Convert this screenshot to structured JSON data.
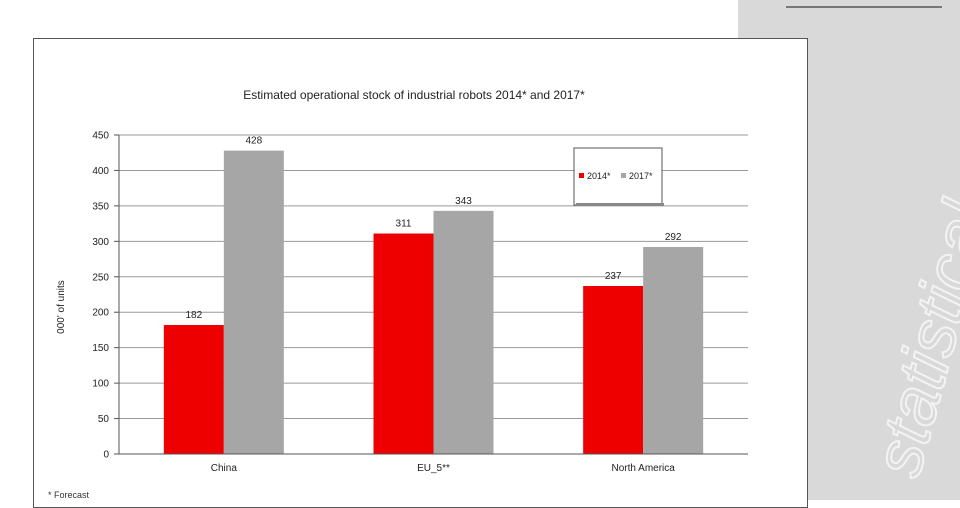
{
  "header": {
    "text": ""
  },
  "side_panel": {
    "watermark_text": "statistical"
  },
  "footnote": "* Forecast",
  "colors": {
    "series_2014": "#ee0000",
    "series_2017": "#a6a6a6",
    "grid": "#9a9a9a",
    "panel": "#d9d9d9"
  },
  "chart_data": {
    "type": "bar",
    "title": "Estimated operational stock of industrial robots 2014* and 2017*",
    "xlabel": "",
    "ylabel": "000' of units",
    "categories": [
      "China",
      "EU_5**",
      "North America"
    ],
    "series": [
      {
        "name": "2014*",
        "values": [
          182,
          311,
          237
        ],
        "color": "#ee0000"
      },
      {
        "name": "2017*",
        "values": [
          428,
          343,
          292
        ],
        "color": "#a6a6a6"
      }
    ],
    "ylim": [
      0,
      450
    ],
    "yticks": [
      0,
      50,
      100,
      150,
      200,
      250,
      300,
      350,
      400,
      450
    ],
    "grid": true,
    "legend": "top-right",
    "data_labels": true
  }
}
